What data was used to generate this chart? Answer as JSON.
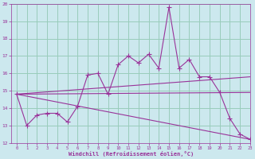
{
  "xlabel": "Windchill (Refroidissement éolien,°C)",
  "x_ticks": [
    0,
    1,
    2,
    3,
    4,
    5,
    6,
    7,
    8,
    9,
    10,
    11,
    12,
    13,
    14,
    15,
    16,
    17,
    18,
    19,
    20,
    21,
    22,
    23
  ],
  "ylim": [
    12,
    20
  ],
  "xlim": [
    -0.5,
    23
  ],
  "y_ticks": [
    12,
    13,
    14,
    15,
    16,
    17,
    18,
    19,
    20
  ],
  "bg_color": "#cce8ee",
  "line_color": "#993399",
  "grid_color": "#99ccbb",
  "line1": {
    "x": [
      0,
      1,
      2,
      3,
      4,
      5,
      6,
      7,
      8,
      9,
      10,
      11,
      12,
      13,
      14,
      15,
      16,
      17,
      18,
      19,
      20,
      21,
      22,
      23
    ],
    "y": [
      14.8,
      13.0,
      13.6,
      13.7,
      13.7,
      13.2,
      14.1,
      15.9,
      16.0,
      14.8,
      16.5,
      17.0,
      16.6,
      17.1,
      16.3,
      19.8,
      16.3,
      16.8,
      15.8,
      15.8,
      14.9,
      13.4,
      12.5,
      12.2
    ]
  },
  "fan_start_x": 0,
  "fan_start_y": 14.8,
  "fan_lines": [
    {
      "end_x": 23,
      "end_y": 12.2
    },
    {
      "end_x": 23,
      "end_y": 14.9
    },
    {
      "end_x": 23,
      "end_y": 15.8
    }
  ]
}
